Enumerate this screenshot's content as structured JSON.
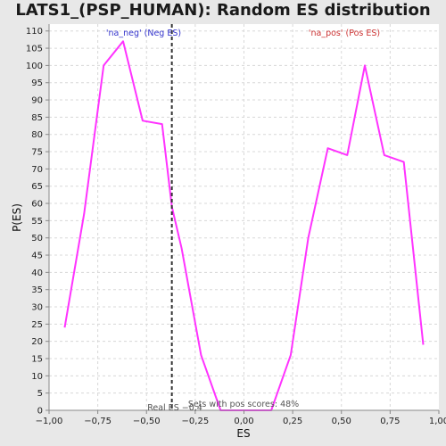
{
  "chart_data": {
    "type": "line",
    "title": "LATS1_(PSP_HUMAN): Random ES distribution",
    "xlabel": "ES",
    "ylabel": "P(ES)",
    "xlim": [
      -1.0,
      1.0
    ],
    "ylim": [
      0,
      112
    ],
    "xticks": [
      -1.0,
      -0.75,
      -0.5,
      -0.25,
      0.0,
      0.25,
      0.5,
      0.75,
      1.0
    ],
    "xtick_labels": [
      "−1,00",
      "−0,75",
      "−0,50",
      "−0,25",
      "0,00",
      "0,25",
      "0,50",
      "0,75",
      "1,00"
    ],
    "yticks": [
      0,
      5,
      10,
      15,
      20,
      25,
      30,
      35,
      40,
      45,
      50,
      55,
      60,
      65,
      70,
      75,
      80,
      85,
      90,
      95,
      100,
      105,
      110
    ],
    "grid": true,
    "series": [
      {
        "color": "#ff33ff",
        "x": [
          -0.92,
          -0.82,
          -0.72,
          -0.62,
          -0.52,
          -0.42,
          -0.37,
          -0.32,
          -0.22,
          -0.12,
          -0.02,
          0.06,
          0.14,
          0.24,
          0.33,
          0.43,
          0.53,
          0.62,
          0.72,
          0.82,
          0.92
        ],
        "y": [
          24,
          57,
          100,
          107,
          84,
          83,
          59,
          47,
          16,
          0,
          0,
          0,
          0,
          16,
          50,
          76,
          74,
          100,
          74,
          72,
          19
        ]
      }
    ],
    "vline": {
      "x": -0.37,
      "label": "Real ES −0,4",
      "color": "#333333"
    },
    "annotations": {
      "neg_label": "'na_neg' (Neg ES)",
      "neg_color": "#3333cc",
      "pos_label": "'na_pos' (Pos ES)",
      "pos_color": "#cc3333",
      "sets_text": "Sets with pos scores: 48%"
    }
  }
}
